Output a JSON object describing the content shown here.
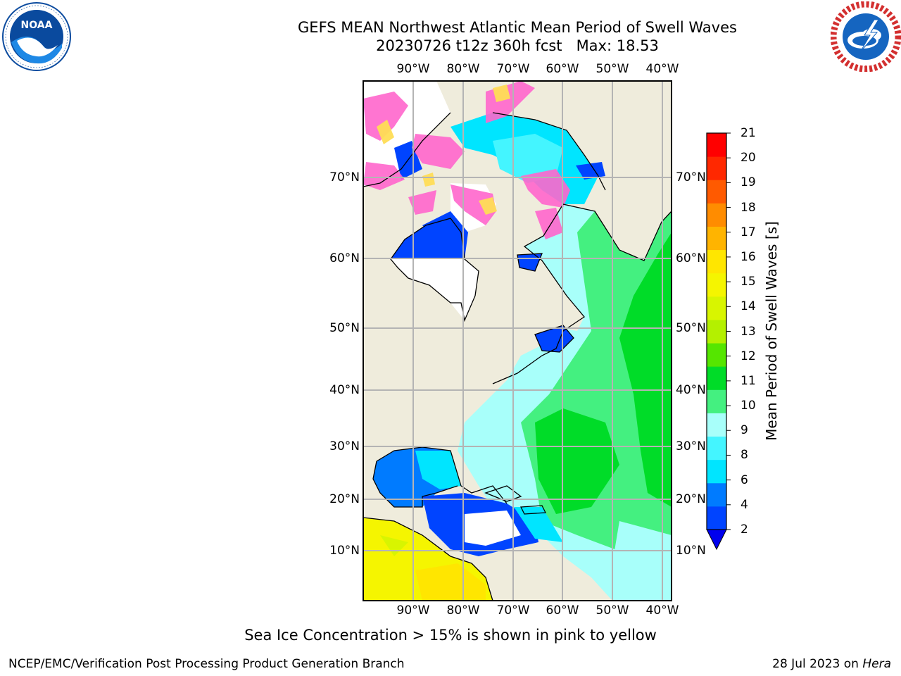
{
  "header": {
    "title_line1": "GEFS MEAN Northwest Atlantic Mean Period of Swell Waves",
    "title_line2": "20230726 t12z 360h fcst   Max: 18.53"
  },
  "logos": {
    "left": {
      "name": "NOAA",
      "ring_text": "NATIONAL OCEANIC AND ATMOSPHERIC ADMINISTRATION · U.S. DEPARTMENT OF COMMERCE",
      "colors": [
        "#0a4a9e",
        "#1e88e5",
        "#ffffff"
      ]
    },
    "right": {
      "name": "NATIONAL WEATHER SERVICE",
      "colors": [
        "#d32f2f",
        "#1565c0",
        "#ffffff"
      ]
    }
  },
  "map": {
    "lon_ticks": [
      "90°W",
      "80°W",
      "70°W",
      "60°W",
      "50°W",
      "40°W"
    ],
    "lat_ticks": [
      "70°N",
      "60°N",
      "50°N",
      "40°N",
      "30°N",
      "20°N",
      "10°N"
    ],
    "colors": {
      "land": "#efecdc",
      "grid": "#b4b4b4",
      "coast": "#000000",
      "ice_pink": "#ff66cc",
      "ice_yellow": "#ffdd55"
    }
  },
  "colorbar": {
    "label": "Mean Period of Swell Waves [s]",
    "ticks": [
      "2",
      "4",
      "6",
      "8",
      "9",
      "10",
      "11",
      "12",
      "13",
      "14",
      "15",
      "16",
      "17",
      "18",
      "19",
      "20",
      "21"
    ],
    "colors": [
      "#0044ff",
      "#007bff",
      "#00e5ff",
      "#44f5ff",
      "#a8fffa",
      "#44f080",
      "#00dc28",
      "#55e600",
      "#b4f000",
      "#d8f500",
      "#f5f500",
      "#ffe600",
      "#ffb400",
      "#ff8c00",
      "#ff5a00",
      "#ff2800",
      "#ff0000"
    ],
    "under_color": "#0000ee"
  },
  "caption": "Sea Ice Concentration > 15% is shown in pink to yellow",
  "footer": {
    "left": "NCEP/EMC/Verification Post Processing Product Generation Branch",
    "right_date": "28 Jul 2023 on ",
    "right_host": "Hera"
  }
}
